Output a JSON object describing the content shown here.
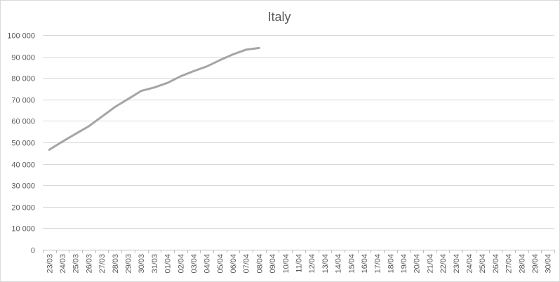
{
  "chart_data": {
    "type": "line",
    "title": "Italy",
    "xlabel": "",
    "ylabel": "",
    "categories": [
      "23/03",
      "24/03",
      "25/03",
      "26/03",
      "27/03",
      "28/03",
      "29/03",
      "30/03",
      "31/03",
      "01/04",
      "02/04",
      "03/04",
      "04/04",
      "05/04",
      "06/04",
      "07/04",
      "08/04",
      "09/04",
      "10/04",
      "11/04",
      "12/04",
      "13/04",
      "14/04",
      "15/04",
      "16/04",
      "17/04",
      "18/04",
      "19/04",
      "20/04",
      "21/04",
      "22/04",
      "23/04",
      "24/04",
      "25/04",
      "26/04",
      "27/04",
      "28/04",
      "29/04",
      "30/04"
    ],
    "series": [
      {
        "name": "",
        "color": "#a5a5a5",
        "values": [
          46600,
          50400,
          54000,
          57500,
          62000,
          66500,
          70200,
          74000,
          75600,
          77700,
          80800,
          83200,
          85400,
          88300,
          91000,
          93200,
          94000,
          null,
          null,
          null,
          null,
          null,
          null,
          null,
          null,
          null,
          null,
          null,
          null,
          null,
          null,
          null,
          null,
          null,
          null,
          null,
          null,
          null,
          null
        ]
      }
    ],
    "yticks": [
      "0",
      "10 000",
      "20 000",
      "30 000",
      "40 000",
      "50 000",
      "60 000",
      "70 000",
      "80 000",
      "90 000",
      "100 000"
    ],
    "ylim": [
      0,
      100000
    ],
    "grid": true,
    "legend": "none"
  }
}
